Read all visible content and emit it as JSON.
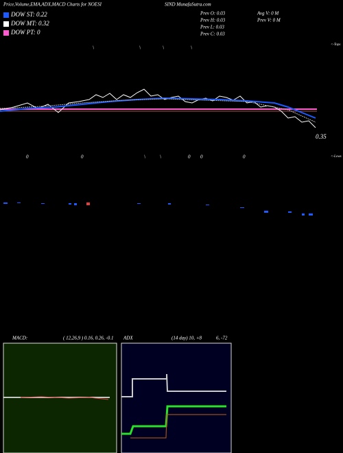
{
  "header": {
    "title": "Price,Volume,EMA,ADX,MACD Charts for NOESI",
    "site": "SIND MunafaSutra.com"
  },
  "legend": [
    "DOW ST: 0.22",
    "DOW MT: 0.32",
    "DOW PT: 0"
  ],
  "prev": [
    "Prev  O: 0.03",
    "Prev  H: 0.03",
    "Prev  L: 0.03",
    "Prev  C: 0.03"
  ],
  "volume_info": [
    "Avg V: 0  M",
    "Prev  V: 0  M"
  ],
  "price_label": "0.35",
  "tops_label": "<-Tops",
  "lows_label": "<-Lows",
  "top_marks": [
    "\\",
    "\\",
    "\\",
    "\\"
  ],
  "low_marks": [
    "0",
    "0",
    "\\",
    "\\",
    "0",
    "0",
    "0"
  ],
  "macd": {
    "label": "MACD:",
    "params": "( 12,26,9 ) 0.16,  0.26,  -0.1"
  },
  "adx": {
    "label": "ADX",
    "params": "(14  day) 10, +8",
    "extra": "6, -72"
  }
}
